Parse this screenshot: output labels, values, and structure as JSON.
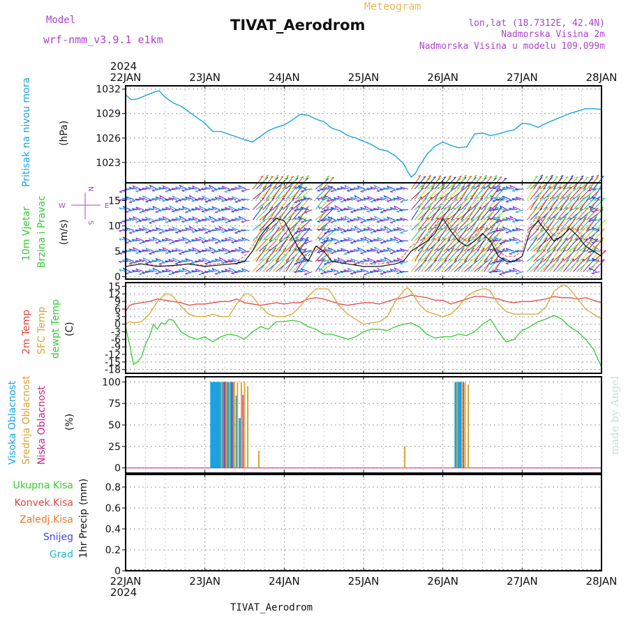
{
  "header": {
    "model_label": "Model",
    "model_name": "wrf-nmm_v3.9.1 e1km",
    "chart_type_label": "Meteogram",
    "station_title": "TIVAT_Aerodrom",
    "coords": "lon,lat (18.7312E, 42.4N)",
    "elevation": "Nadmorska Visina 2m",
    "model_elevation": "Nadmorska Visina u modelu 109.099m",
    "footer_title": "TIVAT_Aerodrom",
    "watermark": "made by Angel"
  },
  "time_axis": {
    "year_top": "2024",
    "year_bottom": "2024",
    "days": [
      "22JAN",
      "23JAN",
      "24JAN",
      "25JAN",
      "26JAN",
      "27JAN",
      "28JAN"
    ]
  },
  "colors": {
    "pressure": "#1aa3e0",
    "temp2m": "#e64545",
    "sfc_temp": "#d9a535",
    "dewpt": "#33cc33",
    "high_cloud": "#1aa3e0",
    "mid_cloud": "#d9a535",
    "low_cloud": "#cc2288",
    "model_text": "#aa44cc",
    "meteogram_text": "#e8b860",
    "total_precip": "#33cc33",
    "convective": "#e64545",
    "frozen": "#ee7722",
    "snow": "#4444dd",
    "hail": "#22bbbb",
    "watermark": "#c8ddd0"
  },
  "chart_data": [
    {
      "panel": "pressure",
      "type": "line",
      "ylabel_name": "Pritisak na nivou mora",
      "ylabel_unit": "(hPa)",
      "yticks": [
        "1032",
        "1029",
        "1026",
        "1023"
      ],
      "ylim": [
        1020.5,
        1032.4
      ],
      "x_unit": "days from 22JAN 00UTC",
      "series": [
        {
          "x": [
            0,
            0.07,
            0.15,
            0.25,
            0.35,
            0.42,
            0.5,
            0.6,
            0.7,
            0.8,
            0.9,
            1.0,
            1.1,
            1.2,
            1.35,
            1.5,
            1.6,
            1.7,
            1.8,
            1.9,
            2.0,
            2.1,
            2.2,
            2.3,
            2.4,
            2.5,
            2.6,
            2.7,
            2.8,
            2.9,
            3.0,
            3.1,
            3.2,
            3.3,
            3.4,
            3.5,
            3.55,
            3.6,
            3.65,
            3.7,
            3.8,
            3.9,
            4.0,
            4.1,
            4.2,
            4.3,
            4.4,
            4.5,
            4.6,
            4.7,
            4.8,
            4.9,
            5.0,
            5.1,
            5.2,
            5.3,
            5.4,
            5.5,
            5.6,
            5.7,
            5.8,
            5.9,
            6.0
          ],
          "y": [
            1031.3,
            1030.7,
            1030.8,
            1031.2,
            1031.6,
            1031.8,
            1031.0,
            1030.3,
            1029.9,
            1029.2,
            1028.5,
            1027.8,
            1026.8,
            1026.8,
            1026.3,
            1025.8,
            1025.5,
            1026.2,
            1026.9,
            1027.3,
            1027.6,
            1028.2,
            1028.9,
            1028.8,
            1028.3,
            1028.0,
            1027.2,
            1026.9,
            1026.3,
            1026.0,
            1025.6,
            1025.2,
            1024.6,
            1024.4,
            1023.8,
            1022.9,
            1022.0,
            1021.2,
            1021.6,
            1022.5,
            1024.0,
            1025.0,
            1025.5,
            1025.1,
            1024.8,
            1024.9,
            1026.5,
            1026.6,
            1026.3,
            1026.5,
            1026.8,
            1027.0,
            1027.8,
            1027.7,
            1027.3,
            1027.8,
            1028.2,
            1028.6,
            1029.0,
            1029.3,
            1029.6,
            1029.6,
            1029.5
          ]
        }
      ]
    },
    {
      "panel": "wind",
      "type": "line",
      "ylabel_name": "10m Vjetar",
      "ylabel_name2": "Brzina i Pravac",
      "ylabel_unit": "(m/s)",
      "compass": {
        "n": "N",
        "s": "S",
        "w": "W",
        "e": "E"
      },
      "yticks": [
        "15",
        "10",
        "5",
        "0"
      ],
      "ylim": [
        -0.5,
        18.5
      ],
      "series": [
        {
          "name": "speed",
          "x": [
            0,
            0.2,
            0.4,
            0.6,
            0.8,
            1.0,
            1.2,
            1.4,
            1.5,
            1.6,
            1.7,
            1.8,
            1.9,
            2.0,
            2.1,
            2.2,
            2.3,
            2.4,
            2.5,
            2.6,
            2.8,
            3.0,
            3.2,
            3.4,
            3.5,
            3.6,
            3.7,
            3.8,
            3.9,
            4.0,
            4.1,
            4.2,
            4.3,
            4.4,
            4.5,
            4.6,
            4.7,
            4.8,
            4.9,
            5.0,
            5.1,
            5.2,
            5.3,
            5.4,
            5.5,
            5.6,
            5.7,
            5.8,
            5.9,
            6.0
          ],
          "y": [
            2,
            2.5,
            2,
            2.2,
            2.5,
            2.0,
            2.3,
            2.6,
            3,
            5,
            8,
            10,
            11.5,
            11,
            8,
            5,
            3,
            6,
            5,
            3,
            2.5,
            2,
            2,
            2.5,
            3,
            5,
            6,
            7,
            8.5,
            11.5,
            9,
            7,
            6,
            7,
            8.5,
            7,
            4,
            3,
            3,
            4,
            9,
            11,
            9,
            7,
            8,
            9.5,
            8,
            6,
            5,
            4
          ]
        },
        {
          "name": "gust",
          "x": [
            0,
            0.2,
            0.4,
            0.6,
            0.8,
            1.0,
            1.2,
            1.4,
            1.5,
            1.6,
            1.7,
            1.8,
            1.9,
            2.0,
            2.1,
            2.2,
            2.3,
            2.4,
            2.5,
            2.6,
            2.8,
            3.0,
            3.2,
            3.4,
            3.5,
            3.6,
            3.7,
            3.8,
            3.9,
            4.0,
            4.1,
            4.2,
            4.3,
            4.4,
            4.5,
            4.6,
            4.7,
            4.8,
            4.9,
            5.0,
            5.1,
            5.2,
            5.3,
            5.4,
            5.5,
            5.6,
            5.7,
            5.8,
            5.9,
            6.0
          ],
          "y": [
            3,
            2.5,
            2.2,
            2,
            2.5,
            2.2,
            2.6,
            3,
            4,
            6,
            9,
            11,
            12,
            9,
            7,
            5,
            4,
            6,
            6,
            3,
            3,
            2.5,
            2.5,
            3,
            4,
            6,
            7,
            8,
            10,
            12,
            10,
            8,
            7,
            8,
            10,
            8,
            5,
            4,
            4,
            5,
            10,
            12,
            10,
            8,
            9,
            10,
            9,
            7,
            6,
            5
          ]
        }
      ]
    },
    {
      "panel": "temperature",
      "type": "line",
      "ylabel_name": "2m Temp",
      "ylabel_name2": "SFC Temp",
      "ylabel_name3": "dewpt Temp",
      "ylabel_unit": "(C)",
      "yticks": [
        "15",
        "12",
        "9",
        "6",
        "3",
        "0",
        "-3",
        "-6",
        "-9",
        "-12",
        "-15",
        "-18"
      ],
      "ylim": [
        -19.5,
        16.5
      ],
      "series": [
        {
          "name": "2m Temp",
          "x": [
            0,
            0.05,
            0.1,
            0.2,
            0.3,
            0.4,
            0.5,
            0.6,
            0.7,
            0.8,
            0.9,
            1.0,
            1.1,
            1.2,
            1.3,
            1.4,
            1.5,
            1.6,
            1.7,
            1.8,
            1.9,
            2.0,
            2.1,
            2.2,
            2.3,
            2.4,
            2.5,
            2.6,
            2.7,
            2.8,
            2.9,
            3.0,
            3.1,
            3.2,
            3.3,
            3.4,
            3.5,
            3.6,
            3.7,
            3.8,
            3.9,
            4.0,
            4.1,
            4.2,
            4.3,
            4.4,
            4.5,
            4.6,
            4.7,
            4.8,
            4.9,
            5.0,
            5.1,
            5.2,
            5.3,
            5.4,
            5.5,
            5.6,
            5.7,
            5.8,
            5.9,
            6.0
          ],
          "y": [
            5,
            7.5,
            8,
            8.5,
            9,
            10,
            9.5,
            9,
            8.5,
            7.5,
            8,
            8,
            8.5,
            9,
            9,
            10,
            8.5,
            8,
            7.5,
            8,
            8.5,
            8,
            8.5,
            8.5,
            10,
            10.5,
            10,
            9,
            8,
            7.5,
            8,
            8.5,
            8.5,
            8,
            9,
            10,
            10.5,
            11.5,
            11,
            10.5,
            9.5,
            9.5,
            8,
            9,
            10,
            11,
            11,
            10.5,
            10,
            9,
            8.5,
            9,
            9,
            9.5,
            10,
            11,
            10.5,
            10.5,
            10,
            10.5,
            9.5,
            8.5
          ]
        },
        {
          "name": "SFC Temp",
          "x": [
            0,
            0.05,
            0.1,
            0.2,
            0.3,
            0.4,
            0.5,
            0.55,
            0.6,
            0.7,
            0.8,
            0.9,
            1.0,
            1.1,
            1.2,
            1.3,
            1.4,
            1.5,
            1.55,
            1.6,
            1.7,
            1.8,
            1.9,
            2.0,
            2.1,
            2.2,
            2.3,
            2.4,
            2.5,
            2.55,
            2.6,
            2.7,
            2.8,
            2.9,
            3.0,
            3.1,
            3.2,
            3.3,
            3.4,
            3.5,
            3.55,
            3.6,
            3.7,
            3.8,
            3.9,
            4.0,
            4.1,
            4.2,
            4.3,
            4.4,
            4.5,
            4.55,
            4.6,
            4.7,
            4.8,
            4.9,
            5.0,
            5.1,
            5.2,
            5.3,
            5.4,
            5.5,
            5.55,
            5.6,
            5.7,
            5.8,
            5.9,
            6.0
          ],
          "y": [
            0,
            1,
            0.5,
            1,
            4,
            9,
            12,
            12,
            11,
            7,
            4,
            3,
            3,
            4,
            3,
            3,
            8,
            12,
            12,
            11,
            7,
            4,
            3,
            3,
            4,
            7,
            11,
            14,
            14,
            14,
            12,
            7,
            4,
            2,
            0,
            0.5,
            1,
            3,
            9,
            13,
            14.5,
            13,
            8,
            5,
            4,
            3,
            4,
            7,
            11,
            13,
            14,
            14,
            13,
            8,
            5,
            4,
            4,
            4,
            4,
            7,
            13,
            15.5,
            15.5,
            14,
            10,
            6,
            4,
            2
          ]
        },
        {
          "name": "dewpt Temp",
          "x": [
            0,
            0.05,
            0.1,
            0.15,
            0.2,
            0.25,
            0.3,
            0.35,
            0.4,
            0.45,
            0.5,
            0.55,
            0.6,
            0.7,
            0.8,
            0.9,
            1.0,
            1.1,
            1.2,
            1.3,
            1.4,
            1.5,
            1.6,
            1.7,
            1.8,
            1.9,
            2.0,
            2.1,
            2.2,
            2.3,
            2.4,
            2.5,
            2.6,
            2.7,
            2.8,
            2.9,
            3.0,
            3.1,
            3.2,
            3.3,
            3.4,
            3.5,
            3.6,
            3.7,
            3.8,
            3.9,
            4.0,
            4.1,
            4.2,
            4.3,
            4.4,
            4.5,
            4.6,
            4.7,
            4.8,
            4.9,
            5.0,
            5.1,
            5.2,
            5.3,
            5.4,
            5.5,
            5.6,
            5.7,
            5.8,
            5.9,
            6.0
          ],
          "y": [
            -1,
            -8,
            -16,
            -15,
            -13,
            -8,
            -5,
            0,
            -2,
            0.5,
            0,
            2,
            1.5,
            -3,
            -5,
            -6,
            -5,
            -7,
            -5,
            -4,
            -4.5,
            -6,
            -3,
            -1,
            -2,
            1,
            1,
            1.5,
            1,
            -1,
            -2,
            -4,
            -4,
            -5,
            -6,
            -5,
            -3,
            -2,
            -2,
            -2.5,
            -1,
            0,
            0.5,
            -1,
            -4,
            -5.5,
            -5,
            -5,
            -4,
            -4.5,
            -3,
            0,
            2,
            -3,
            -7,
            -6,
            -2.5,
            -1,
            1,
            2,
            3.5,
            2,
            -1,
            -3,
            -6,
            -10,
            -17
          ]
        }
      ]
    },
    {
      "panel": "clouds",
      "type": "bar",
      "ylabel_name": "Visoka Oblacnost",
      "ylabel_name2": "Srednja Oblacnost",
      "ylabel_name3": "Niska Oblacnost",
      "ylabel_unit": "(%)",
      "yticks": [
        "100",
        "75",
        "50",
        "25",
        "0"
      ],
      "ylim": [
        -6,
        106
      ],
      "series": [
        {
          "name": "Visoka Oblacnost",
          "x": [
            1.08,
            1.1,
            1.12,
            1.14,
            1.16,
            1.18,
            1.2,
            1.22,
            1.24,
            1.26,
            1.28,
            1.3,
            1.32,
            1.36,
            1.4,
            1.44,
            4.16,
            4.18,
            4.2,
            4.22
          ],
          "y": [
            100,
            100,
            100,
            100,
            100,
            100,
            100,
            100,
            100,
            100,
            100,
            100,
            100,
            100,
            84,
            58,
            100,
            100,
            100,
            100
          ]
        },
        {
          "name": "Srednja Oblacnost",
          "x": [
            1.21,
            1.27,
            1.31,
            1.37,
            1.41,
            1.46,
            1.5,
            1.54,
            1.68,
            3.52,
            4.18,
            4.24,
            4.28,
            4.32
          ],
          "y": [
            100,
            100,
            100,
            100,
            100,
            100,
            100,
            95,
            20,
            25,
            100,
            100,
            99,
            97
          ]
        },
        {
          "name": "Niska Oblacnost",
          "x": [
            1.25,
            1.34,
            1.48,
            4.26
          ],
          "y": [
            100,
            100,
            85,
            100
          ]
        }
      ]
    },
    {
      "panel": "precipitation",
      "type": "bar",
      "ylabel_name": "1hr Precip",
      "ylabel_unit": "(mm)",
      "yticks": [
        "0.8",
        "0.6",
        "0.4",
        "0.2",
        "0"
      ],
      "ylim": [
        0,
        0.92
      ],
      "series": [
        {
          "name": "Ukupna Kisa",
          "values": []
        },
        {
          "name": "Konvek.Kisa",
          "values": []
        },
        {
          "name": "Zaledj.Kisa",
          "values": []
        },
        {
          "name": "Snijeg",
          "values": []
        },
        {
          "name": "Grad",
          "values": []
        }
      ]
    }
  ]
}
